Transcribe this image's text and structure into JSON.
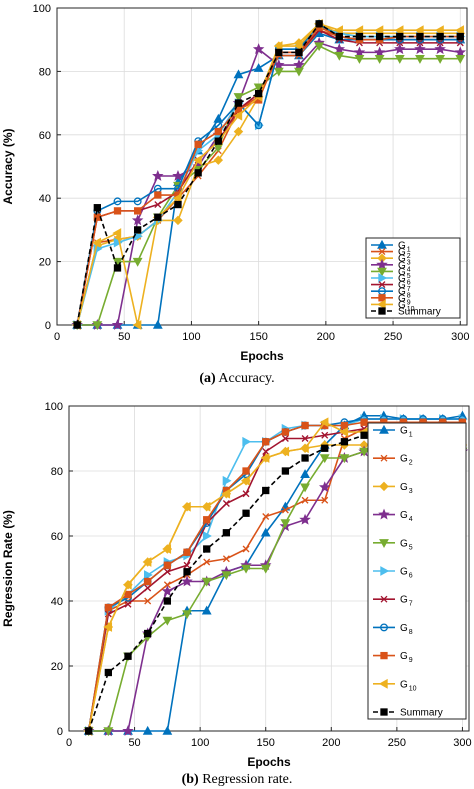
{
  "chart_data": [
    {
      "type": "line",
      "caption_label": "(a)",
      "caption_text": "Accuracy.",
      "xlabel": "Epochs",
      "ylabel": "Accuracy (%)",
      "xlim": [
        0,
        305
      ],
      "ylim": [
        0,
        100
      ],
      "xticks": [
        0,
        50,
        100,
        150,
        200,
        250,
        300
      ],
      "yticks": [
        0,
        20,
        40,
        60,
        80,
        100
      ],
      "grid": true,
      "legend_position": "right",
      "x": [
        15,
        30,
        45,
        60,
        75,
        90,
        105,
        120,
        135,
        150,
        165,
        180,
        195,
        210,
        225,
        240,
        255,
        270,
        285,
        300
      ],
      "series": [
        {
          "name": "G",
          "sub": "1",
          "color": "#0072bd",
          "marker": "triangle-up",
          "dashed": false,
          "values": [
            0,
            0,
            0,
            0,
            0,
            45,
            55,
            65,
            79,
            81,
            85,
            85,
            92,
            90,
            90,
            90,
            90,
            90,
            90,
            90
          ]
        },
        {
          "name": "G",
          "sub": "2",
          "color": "#d95319",
          "marker": "x",
          "dashed": false,
          "values": [
            0,
            26,
            27,
            28,
            33,
            40,
            47,
            55,
            68,
            72,
            85,
            85,
            93,
            91,
            90,
            90,
            90,
            90,
            90,
            90
          ]
        },
        {
          "name": "G",
          "sub": "3",
          "color": "#edb120",
          "marker": "diamond",
          "dashed": false,
          "values": [
            0,
            25,
            27,
            28,
            33,
            33,
            50,
            52,
            61,
            72,
            88,
            89,
            95,
            92,
            92,
            92,
            92,
            92,
            92,
            92
          ]
        },
        {
          "name": "G",
          "sub": "4",
          "color": "#7e2f8e",
          "marker": "star",
          "dashed": false,
          "values": [
            0,
            0,
            0,
            33,
            47,
            47,
            50,
            60,
            70,
            87,
            82,
            82,
            89,
            87,
            86,
            86,
            87,
            87,
            87,
            86
          ]
        },
        {
          "name": "G",
          "sub": "5",
          "color": "#77ac30",
          "marker": "triangle-down",
          "dashed": false,
          "values": [
            0,
            0,
            20,
            20,
            34,
            44,
            49,
            56,
            72,
            75,
            80,
            80,
            88,
            85,
            84,
            84,
            84,
            84,
            84,
            84
          ]
        },
        {
          "name": "G",
          "sub": "6",
          "color": "#4dbeee",
          "marker": "triangle-right",
          "dashed": false,
          "values": [
            0,
            24,
            26,
            28,
            33,
            42,
            55,
            60,
            70,
            63,
            87,
            87,
            94,
            92,
            91,
            91,
            91,
            91,
            91,
            91
          ]
        },
        {
          "name": "G",
          "sub": "7",
          "color": "#a2142f",
          "marker": "x",
          "dashed": false,
          "values": [
            0,
            34,
            36,
            36,
            38,
            42,
            52,
            58,
            68,
            73,
            86,
            86,
            93,
            90,
            89,
            89,
            89,
            89,
            89,
            89
          ]
        },
        {
          "name": "G",
          "sub": "8",
          "color": "#0072bd",
          "marker": "circle",
          "dashed": false,
          "values": [
            0,
            36,
            39,
            39,
            43,
            43,
            58,
            63,
            70,
            63,
            87,
            87,
            95,
            91,
            90,
            90,
            90,
            90,
            90,
            90
          ]
        },
        {
          "name": "G",
          "sub": "9",
          "color": "#d95319",
          "marker": "square",
          "dashed": false,
          "values": [
            0,
            34,
            36,
            36,
            41,
            41,
            57,
            61,
            68,
            71,
            86,
            86,
            94,
            91,
            90,
            90,
            91,
            91,
            91,
            91
          ]
        },
        {
          "name": "G",
          "sub": "10",
          "color": "#edb120",
          "marker": "triangle-left",
          "dashed": false,
          "values": [
            0,
            26,
            29,
            0,
            34,
            40,
            52,
            58,
            66,
            72,
            88,
            88,
            95,
            93,
            93,
            93,
            93,
            93,
            93,
            93
          ]
        },
        {
          "name": "Summary",
          "sub": "",
          "color": "#000000",
          "marker": "square",
          "dashed": true,
          "values": [
            0,
            37,
            18,
            30,
            34,
            38,
            48,
            58,
            70,
            73,
            86,
            86,
            95,
            91,
            91,
            91,
            91,
            91,
            91,
            91
          ]
        }
      ]
    },
    {
      "type": "line",
      "caption_label": "(b)",
      "caption_text": "Regression rate.",
      "xlabel": "Epochs",
      "ylabel": "Regression Rate (%)",
      "xlim": [
        0,
        305
      ],
      "ylim": [
        0,
        100
      ],
      "xticks": [
        0,
        50,
        100,
        150,
        200,
        250,
        300
      ],
      "yticks": [
        0,
        20,
        40,
        60,
        80,
        100
      ],
      "grid": true,
      "legend_position": "right",
      "x": [
        15,
        30,
        45,
        60,
        75,
        90,
        105,
        120,
        135,
        150,
        165,
        180,
        195,
        210,
        225,
        240,
        255,
        270,
        285,
        300
      ],
      "series": [
        {
          "name": "G",
          "sub": "1",
          "color": "#0072bd",
          "marker": "triangle-up",
          "dashed": false,
          "values": [
            0,
            0,
            0,
            0,
            0,
            37,
            37,
            49,
            51,
            61,
            69,
            79,
            88,
            94,
            97,
            97,
            96,
            96,
            96,
            97
          ]
        },
        {
          "name": "G",
          "sub": "2",
          "color": "#d95319",
          "marker": "x",
          "dashed": false,
          "values": [
            0,
            37,
            40,
            40,
            45,
            48,
            52,
            53,
            56,
            66,
            68,
            71,
            71,
            90,
            93,
            93,
            93,
            93,
            93,
            93
          ]
        },
        {
          "name": "G",
          "sub": "3",
          "color": "#edb120",
          "marker": "diamond",
          "dashed": false,
          "values": [
            0,
            32,
            45,
            52,
            56,
            69,
            69,
            73,
            77,
            84,
            86,
            87,
            88,
            88,
            88,
            88,
            88,
            88,
            88,
            88
          ]
        },
        {
          "name": "G",
          "sub": "4",
          "color": "#7e2f8e",
          "marker": "star",
          "dashed": false,
          "values": [
            0,
            0,
            0,
            30,
            43,
            46,
            46,
            49,
            51,
            51,
            63,
            65,
            75,
            84,
            86,
            86,
            86,
            86,
            86,
            86
          ]
        },
        {
          "name": "G",
          "sub": "5",
          "color": "#77ac30",
          "marker": "triangle-down",
          "dashed": false,
          "values": [
            0,
            0,
            23,
            29,
            34,
            36,
            46,
            48,
            50,
            50,
            64,
            75,
            84,
            84,
            86,
            86,
            85,
            85,
            85,
            86
          ]
        },
        {
          "name": "G",
          "sub": "6",
          "color": "#4dbeee",
          "marker": "triangle-right",
          "dashed": false,
          "values": [
            0,
            37,
            42,
            48,
            52,
            54,
            60,
            77,
            89,
            89,
            93,
            94,
            94,
            94,
            96,
            96,
            96,
            96,
            96,
            96
          ]
        },
        {
          "name": "G",
          "sub": "7",
          "color": "#a2142f",
          "marker": "x",
          "dashed": false,
          "values": [
            0,
            36,
            39,
            44,
            49,
            51,
            64,
            70,
            73,
            86,
            90,
            90,
            91,
            92,
            93,
            93,
            93,
            93,
            93,
            93
          ]
        },
        {
          "name": "G",
          "sub": "8",
          "color": "#0072bd",
          "marker": "circle",
          "dashed": false,
          "values": [
            0,
            38,
            41,
            46,
            51,
            55,
            64,
            74,
            79,
            89,
            92,
            94,
            94,
            95,
            96,
            96,
            96,
            96,
            96,
            96
          ]
        },
        {
          "name": "G",
          "sub": "9",
          "color": "#d95319",
          "marker": "square",
          "dashed": false,
          "values": [
            0,
            38,
            42,
            46,
            51,
            55,
            65,
            74,
            80,
            89,
            92,
            94,
            94,
            94,
            95,
            95,
            95,
            95,
            95,
            95
          ]
        },
        {
          "name": "G",
          "sub": "10",
          "color": "#edb120",
          "marker": "triangle-left",
          "dashed": false,
          "values": [
            0,
            32,
            45,
            52,
            56,
            69,
            69,
            73,
            77,
            84,
            86,
            87,
            95,
            92,
            92,
            92,
            92,
            92,
            92,
            92
          ]
        },
        {
          "name": "Summary",
          "sub": "",
          "color": "#000000",
          "marker": "square",
          "dashed": true,
          "values": [
            0,
            18,
            23,
            30,
            40,
            49,
            56,
            61,
            67,
            74,
            80,
            84,
            87,
            89,
            91,
            92,
            92,
            92,
            92,
            92
          ]
        }
      ]
    }
  ]
}
